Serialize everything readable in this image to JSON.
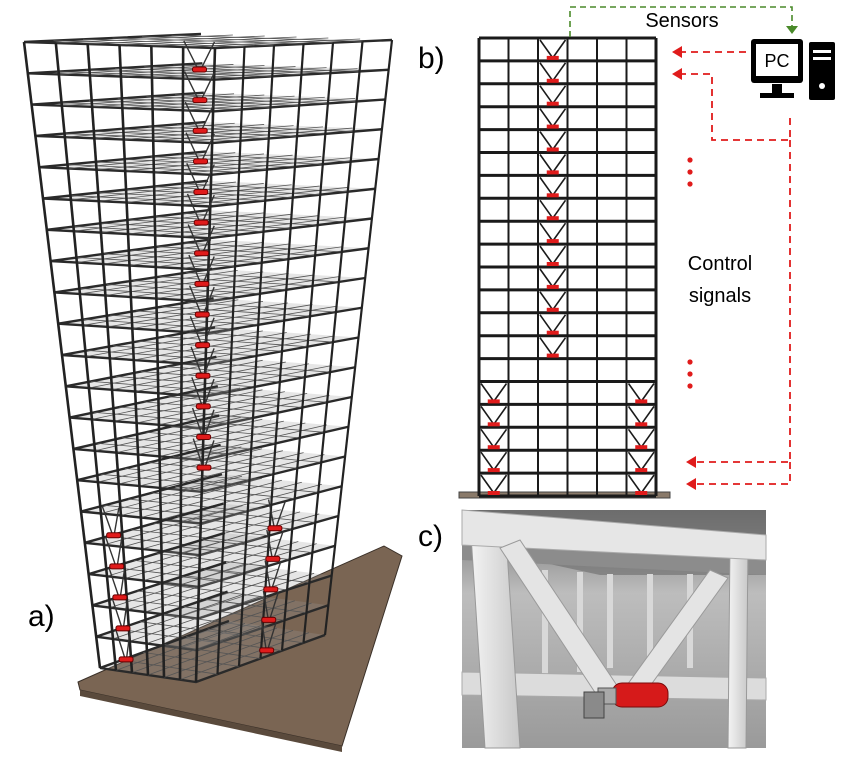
{
  "panels": {
    "a": "a)",
    "b": "b)",
    "c": "c)"
  },
  "labels": {
    "sensors": "Sensors",
    "pc": "PC",
    "control_line1": "Control",
    "control_line2": "signals"
  },
  "colors": {
    "frame": "#1a1a1a",
    "damper": "#e01b1b",
    "signal": "#e01b1b",
    "sensor_link": "#4a8a2a",
    "floor_slab": "#9a9a9a",
    "base_plate": "#7a6553"
  },
  "structure": {
    "stories": 20,
    "bays": 6,
    "central_braced_stories": 14,
    "corner_braced_stories": 5
  }
}
